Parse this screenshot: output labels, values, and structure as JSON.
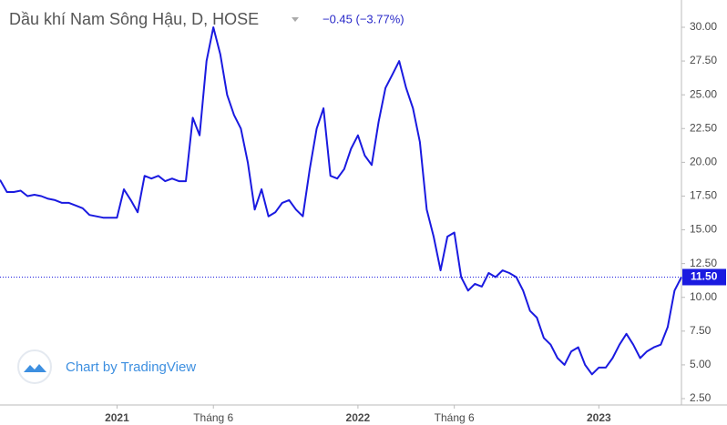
{
  "chart_data": {
    "type": "line",
    "title": "Dầu khí Nam Sông Hậu, D, HOSE",
    "change_label": "−0.45 (−3.77%)",
    "last_price_label": "11.50",
    "watermark": "Chart by TradingView",
    "categories": [
      null,
      null,
      null,
      null,
      null,
      null,
      null,
      null,
      null,
      null,
      null,
      null,
      null,
      null,
      null,
      null,
      null,
      "2021",
      null,
      null,
      null,
      null,
      null,
      null,
      null,
      null,
      null,
      null,
      null,
      null,
      null,
      "Tháng 6",
      null,
      null,
      null,
      null,
      null,
      null,
      null,
      null,
      null,
      null,
      null,
      null,
      null,
      null,
      null,
      null,
      null,
      null,
      null,
      null,
      "2022",
      null,
      null,
      null,
      null,
      null,
      null,
      null,
      null,
      null,
      null,
      null,
      null,
      null,
      "Tháng 6",
      null,
      null,
      null,
      null,
      null,
      null,
      null,
      null,
      null,
      null,
      null,
      null,
      null,
      null,
      null,
      null,
      null,
      null,
      null,
      null,
      "2023",
      null,
      null,
      null,
      null,
      null,
      null,
      null,
      null,
      null,
      null,
      null,
      null
    ],
    "series": [
      {
        "name": "Dầu khí Nam Sông Hậu",
        "color": "#1a1ae0",
        "values": [
          18.7,
          17.8,
          17.8,
          17.9,
          17.5,
          17.6,
          17.5,
          17.3,
          17.2,
          17.0,
          17.0,
          16.8,
          16.6,
          16.1,
          16.0,
          15.9,
          15.9,
          15.9,
          18.0,
          17.2,
          16.3,
          19.0,
          18.8,
          19.0,
          18.6,
          18.8,
          18.6,
          18.6,
          23.3,
          22.0,
          27.5,
          30.0,
          28.0,
          25.0,
          23.5,
          22.5,
          20.0,
          16.5,
          18.0,
          16.0,
          16.3,
          17.0,
          17.2,
          16.5,
          16.0,
          19.5,
          22.5,
          24.0,
          19.0,
          18.8,
          19.5,
          21.0,
          22.0,
          20.5,
          19.8,
          23.0,
          25.5,
          26.5,
          27.5,
          25.5,
          24.0,
          21.5,
          16.5,
          14.5,
          12.0,
          14.5,
          14.8,
          11.5,
          10.5,
          11.0,
          10.8,
          11.8,
          11.5,
          12.0,
          11.8,
          11.5,
          10.5,
          9.0,
          8.5,
          7.0,
          6.5,
          5.5,
          5.0,
          6.0,
          6.3,
          5.0,
          4.3,
          4.8,
          4.8,
          5.5,
          6.5,
          7.3,
          6.5,
          5.5,
          6.0,
          6.3,
          6.5,
          7.8,
          10.5,
          11.5
        ]
      }
    ],
    "ylim": [
      2.03,
      32.02
    ],
    "yticks": [
      {
        "value": 2.5,
        "label": "2.50"
      },
      {
        "value": 5,
        "label": "5.00"
      },
      {
        "value": 7.5,
        "label": "7.50"
      },
      {
        "value": 10,
        "label": "10.00"
      },
      {
        "value": 12.5,
        "label": "12.50"
      },
      {
        "value": 15,
        "label": "15.00"
      },
      {
        "value": 17.5,
        "label": "17.50"
      },
      {
        "value": 20,
        "label": "20.00"
      },
      {
        "value": 22.5,
        "label": "22.50"
      },
      {
        "value": 25,
        "label": "25.00"
      },
      {
        "value": 27.5,
        "label": "27.50"
      },
      {
        "value": 30,
        "label": "30.00"
      }
    ],
    "grid": false
  }
}
